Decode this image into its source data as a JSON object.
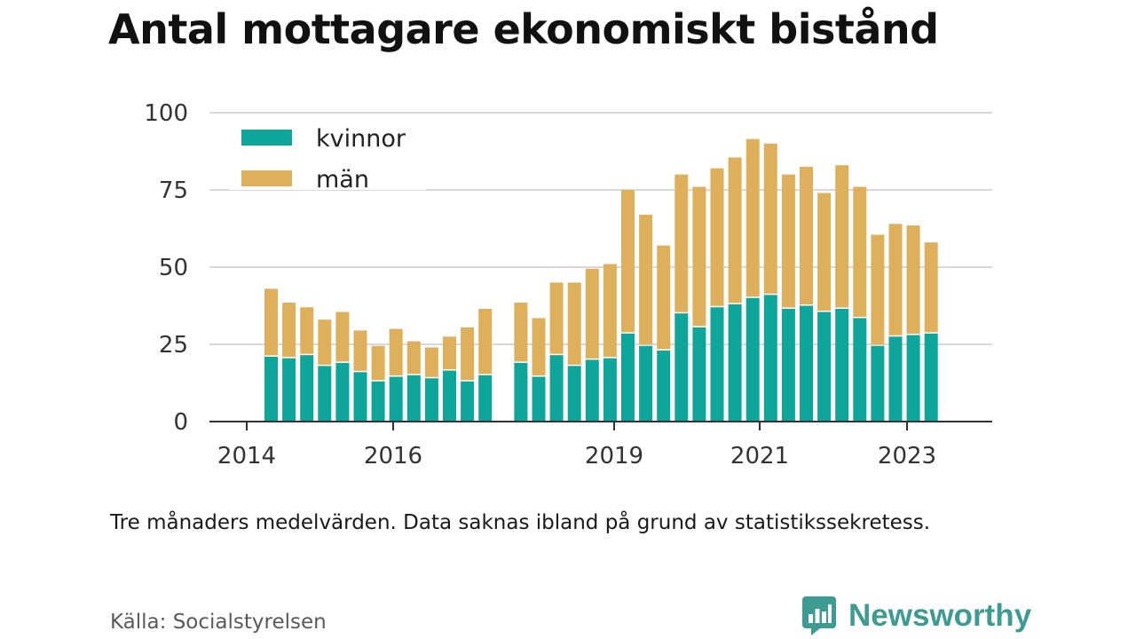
{
  "title": "Antal mottagare ekonomiskt bistånd",
  "note": "Tre månaders medelvärden. Data saknas ibland på grund av statistikssekretess.",
  "source": "Källa: Socialstyrelsen",
  "brand": {
    "name": "Newsworthy",
    "icon": "newsworthy-logo-icon"
  },
  "colors": {
    "kvinnor": "#0ea59a",
    "man": "#dfb05b",
    "grid": "#d9d9d9",
    "axis": "#333333"
  },
  "chart_data": {
    "type": "bar",
    "stacked": true,
    "ylim": [
      0,
      100
    ],
    "yticks": [
      0,
      25,
      50,
      75,
      100
    ],
    "xtick_labels": [
      "2014",
      "2016",
      "2019",
      "2021",
      "2023"
    ],
    "grid": true,
    "legend_position": "top-left",
    "series": [
      {
        "name": "kvinnor",
        "color": "#0ea59a",
        "values": [
          21,
          20.5,
          21.5,
          18,
          19,
          16,
          13,
          14.5,
          15,
          14,
          16.5,
          13,
          15,
          null,
          19,
          14.5,
          21.5,
          18,
          20,
          20.5,
          28.5,
          24.5,
          23,
          35,
          30.5,
          37,
          38,
          40,
          41,
          36.5,
          37.5,
          35.5,
          36.5,
          33.5,
          24.5,
          27.5,
          28,
          28.5
        ]
      },
      {
        "name": "män",
        "color": "#dfb05b",
        "values": [
          22,
          18,
          15.5,
          15,
          16.5,
          13.5,
          11.5,
          15.5,
          11,
          10,
          11,
          17.5,
          21.5,
          null,
          19.5,
          19,
          23.5,
          27,
          29.5,
          30.5,
          46.5,
          42.5,
          34,
          45,
          45.5,
          45,
          47.5,
          51.5,
          49,
          43.5,
          45,
          38.5,
          46.5,
          42.5,
          36,
          36.5,
          35.5,
          29.5
        ]
      }
    ]
  }
}
